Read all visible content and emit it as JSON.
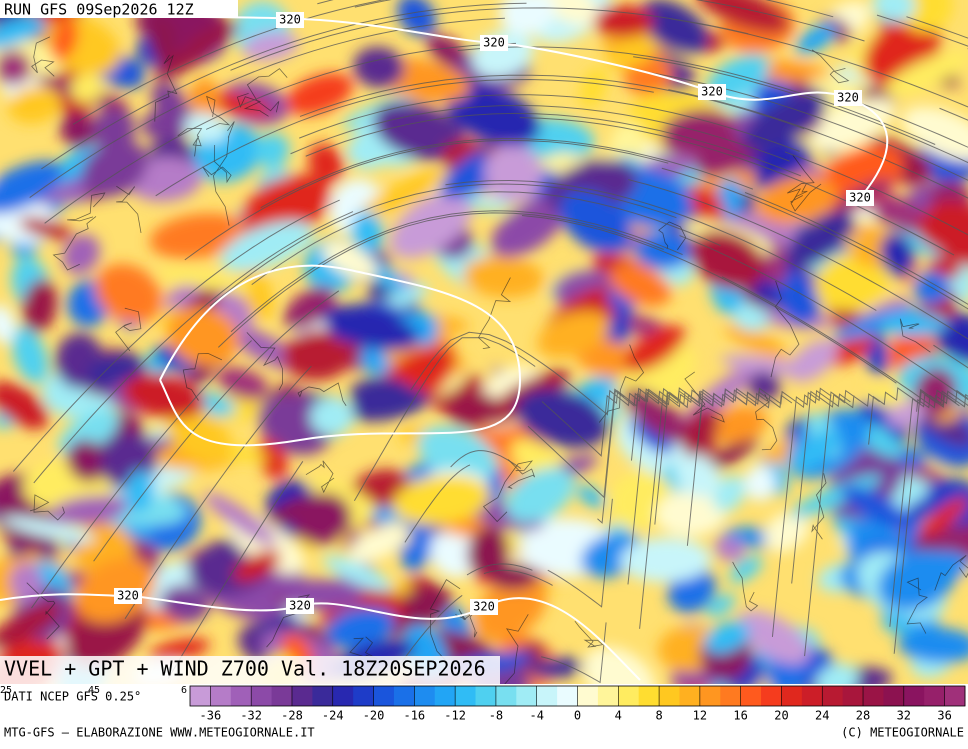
{
  "run_label": "RUN GFS 09Sep2026 12Z",
  "title": "VVEL + GPT + WIND Z700 Val. 18Z20SEP2026",
  "source": "DATI NCEP GFS 0.25°",
  "edge_labels": [
    "25",
    "45",
    "6"
  ],
  "contour_labels": [
    "320",
    "320",
    "320",
    "320",
    "320",
    "320",
    "320",
    "320"
  ],
  "colorbar": {
    "lim": [
      -38,
      38
    ],
    "ticks": [
      -36,
      -32,
      -28,
      -24,
      -20,
      -16,
      -12,
      -8,
      -4,
      0,
      4,
      8,
      12,
      16,
      20,
      24,
      28,
      32,
      36
    ],
    "colors": [
      "#c89bd8",
      "#b57cc8",
      "#a060b8",
      "#8c4aa8",
      "#7a3a98",
      "#5a2a90",
      "#3a2a9a",
      "#2828b0",
      "#1e3cc8",
      "#1a55dc",
      "#1a70e8",
      "#1e8cf0",
      "#22a5f5",
      "#30bcf5",
      "#4fd0f0",
      "#78dff0",
      "#a0ecf5",
      "#c8f5fa",
      "#eafcff",
      "#fffbd0",
      "#fff59a",
      "#ffec60",
      "#ffdd30",
      "#ffc820",
      "#ffb020",
      "#ff9620",
      "#ff7a20",
      "#ff5a1e",
      "#f53c1e",
      "#e0281e",
      "#cc1e28",
      "#b81a32",
      "#a8163c",
      "#9a1446",
      "#8c1250",
      "#8a1460",
      "#96206a",
      "#a0307a"
    ]
  },
  "footer_left": "MTG-GFS — ELABORAZIONE WWW.METEOGIORNALE.IT",
  "footer_right": "(C) METEOGIORNALE"
}
